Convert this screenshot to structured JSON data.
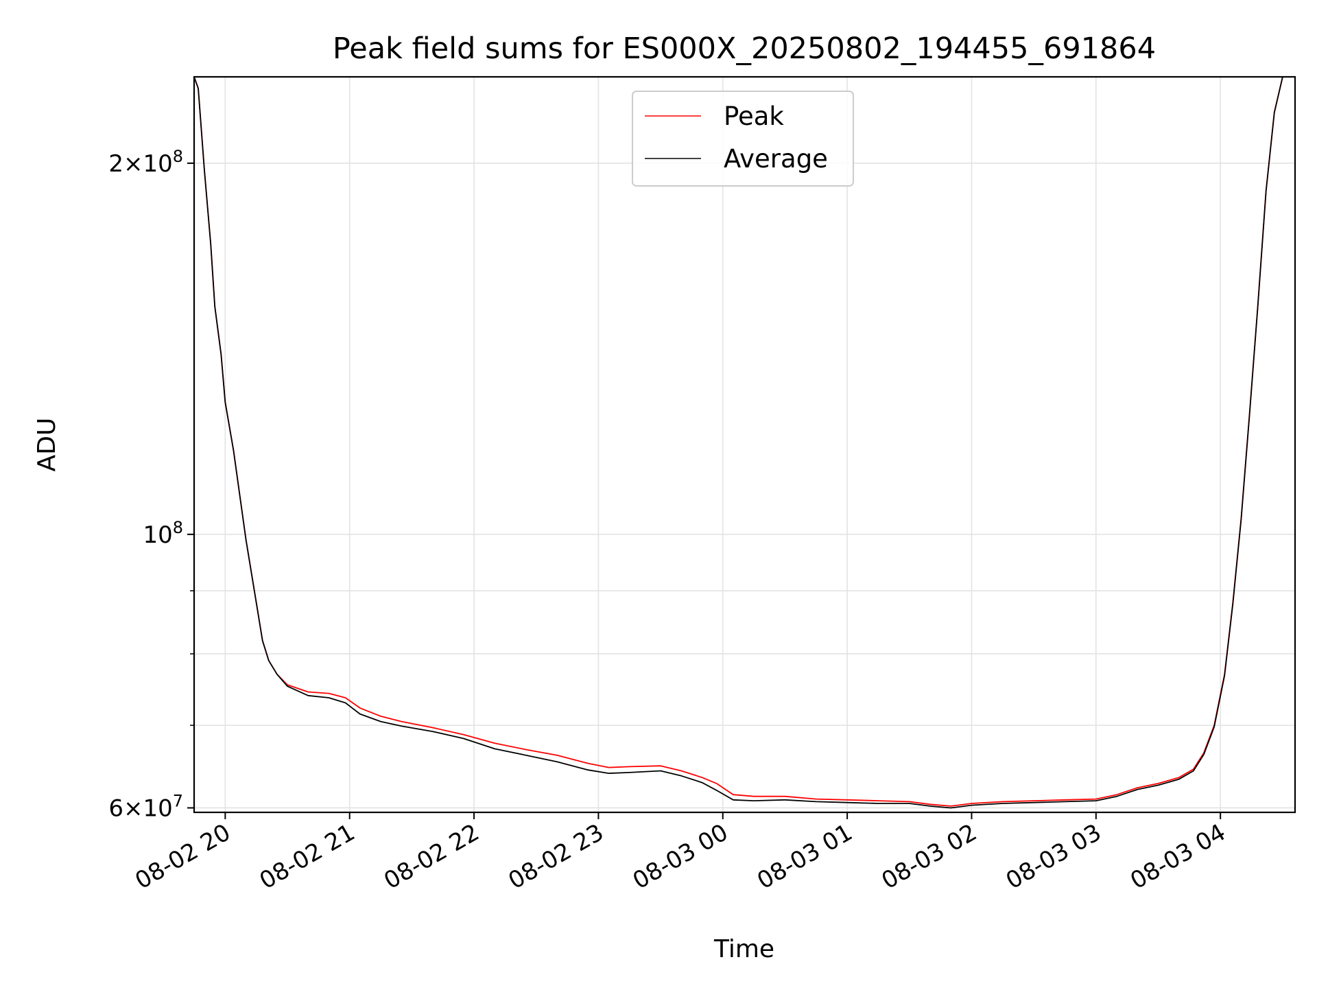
{
  "chart_data": {
    "type": "line",
    "title": "Peak field sums for ES000X_20250802_194455_691864",
    "xlabel": "Time",
    "ylabel": "ADU",
    "y_scale": "log",
    "xlim": [
      "2025-08-02 19:45",
      "2025-08-03 04:36"
    ],
    "ylim": [
      59500000,
      235000000
    ],
    "x_ticks": [
      "08-02 20",
      "08-02 21",
      "08-02 22",
      "08-02 23",
      "08-03 00",
      "08-03 01",
      "08-03 02",
      "08-03 03",
      "08-03 04"
    ],
    "y_ticks": [
      {
        "value": 60000000,
        "base": "6",
        "exp": "7"
      },
      {
        "value": 100000000,
        "base": "",
        "exp": "8"
      },
      {
        "value": 200000000,
        "base": "2",
        "exp": "8"
      }
    ],
    "grid": true,
    "legend_position": "upper center",
    "series": [
      {
        "name": "Peak",
        "color": "#ff0000",
        "points": [
          [
            "2025-08-02 19:45",
            235000000
          ],
          [
            "2025-08-02 19:47",
            230000000
          ],
          [
            "2025-08-02 19:50",
            197000000
          ],
          [
            "2025-08-02 19:53",
            172000000
          ],
          [
            "2025-08-02 19:55",
            153000000
          ],
          [
            "2025-08-02 19:58",
            140000000
          ],
          [
            "2025-08-02 20:00",
            128000000
          ],
          [
            "2025-08-02 20:04",
            117000000
          ],
          [
            "2025-08-02 20:10",
            99000000
          ],
          [
            "2025-08-02 20:15",
            88000000
          ],
          [
            "2025-08-02 20:18",
            82000000
          ],
          [
            "2025-08-02 20:21",
            79000000
          ],
          [
            "2025-08-02 20:25",
            77000000
          ],
          [
            "2025-08-02 20:30",
            75500000
          ],
          [
            "2025-08-02 20:40",
            74500000
          ],
          [
            "2025-08-02 20:50",
            74300000
          ],
          [
            "2025-08-02 20:58",
            73700000
          ],
          [
            "2025-08-02 21:05",
            72300000
          ],
          [
            "2025-08-02 21:15",
            71200000
          ],
          [
            "2025-08-02 21:25",
            70500000
          ],
          [
            "2025-08-02 21:40",
            69700000
          ],
          [
            "2025-08-02 21:55",
            68800000
          ],
          [
            "2025-08-02 22:10",
            67700000
          ],
          [
            "2025-08-02 22:25",
            66900000
          ],
          [
            "2025-08-02 22:40",
            66200000
          ],
          [
            "2025-08-02 22:55",
            65200000
          ],
          [
            "2025-08-02 23:05",
            64700000
          ],
          [
            "2025-08-02 23:15",
            64800000
          ],
          [
            "2025-08-02 23:30",
            64900000
          ],
          [
            "2025-08-02 23:40",
            64300000
          ],
          [
            "2025-08-02 23:50",
            63500000
          ],
          [
            "2025-08-02 23:57",
            62800000
          ],
          [
            "2025-08-03 00:05",
            61500000
          ],
          [
            "2025-08-03 00:15",
            61300000
          ],
          [
            "2025-08-03 00:30",
            61300000
          ],
          [
            "2025-08-03 00:45",
            61000000
          ],
          [
            "2025-08-03 01:00",
            60900000
          ],
          [
            "2025-08-03 01:15",
            60800000
          ],
          [
            "2025-08-03 01:30",
            60700000
          ],
          [
            "2025-08-03 01:40",
            60400000
          ],
          [
            "2025-08-03 01:50",
            60200000
          ],
          [
            "2025-08-03 02:00",
            60500000
          ],
          [
            "2025-08-03 02:15",
            60700000
          ],
          [
            "2025-08-03 02:30",
            60800000
          ],
          [
            "2025-08-03 02:45",
            60900000
          ],
          [
            "2025-08-03 03:00",
            61000000
          ],
          [
            "2025-08-03 03:10",
            61500000
          ],
          [
            "2025-08-03 03:20",
            62300000
          ],
          [
            "2025-08-03 03:30",
            62800000
          ],
          [
            "2025-08-03 03:40",
            63500000
          ],
          [
            "2025-08-03 03:47",
            64500000
          ],
          [
            "2025-08-03 03:52",
            66500000
          ],
          [
            "2025-08-03 03:57",
            70000000
          ],
          [
            "2025-08-03 04:02",
            77000000
          ],
          [
            "2025-08-03 04:06",
            88000000
          ],
          [
            "2025-08-03 04:10",
            103000000
          ],
          [
            "2025-08-03 04:14",
            125000000
          ],
          [
            "2025-08-03 04:18",
            153000000
          ],
          [
            "2025-08-03 04:22",
            190000000
          ],
          [
            "2025-08-03 04:26",
            220000000
          ],
          [
            "2025-08-03 04:30",
            235000000
          ],
          [
            "2025-08-03 04:36",
            235000000
          ]
        ]
      },
      {
        "name": "Average",
        "color": "#000000",
        "points": [
          [
            "2025-08-02 19:45",
            235000000
          ],
          [
            "2025-08-02 19:47",
            230000000
          ],
          [
            "2025-08-02 19:50",
            197000000
          ],
          [
            "2025-08-02 19:53",
            172000000
          ],
          [
            "2025-08-02 19:55",
            153000000
          ],
          [
            "2025-08-02 19:58",
            140000000
          ],
          [
            "2025-08-02 20:00",
            128000000
          ],
          [
            "2025-08-02 20:04",
            117000000
          ],
          [
            "2025-08-02 20:10",
            99000000
          ],
          [
            "2025-08-02 20:15",
            88000000
          ],
          [
            "2025-08-02 20:18",
            82000000
          ],
          [
            "2025-08-02 20:21",
            79000000
          ],
          [
            "2025-08-02 20:25",
            77000000
          ],
          [
            "2025-08-02 20:30",
            75300000
          ],
          [
            "2025-08-02 20:40",
            74000000
          ],
          [
            "2025-08-02 20:50",
            73700000
          ],
          [
            "2025-08-02 20:58",
            73000000
          ],
          [
            "2025-08-02 21:05",
            71500000
          ],
          [
            "2025-08-02 21:15",
            70500000
          ],
          [
            "2025-08-02 21:25",
            69900000
          ],
          [
            "2025-08-02 21:40",
            69200000
          ],
          [
            "2025-08-02 21:55",
            68300000
          ],
          [
            "2025-08-02 22:10",
            67000000
          ],
          [
            "2025-08-02 22:25",
            66200000
          ],
          [
            "2025-08-02 22:40",
            65400000
          ],
          [
            "2025-08-02 22:55",
            64400000
          ],
          [
            "2025-08-02 23:05",
            64000000
          ],
          [
            "2025-08-02 23:15",
            64100000
          ],
          [
            "2025-08-02 23:30",
            64300000
          ],
          [
            "2025-08-02 23:40",
            63700000
          ],
          [
            "2025-08-02 23:50",
            62900000
          ],
          [
            "2025-08-02 23:57",
            62000000
          ],
          [
            "2025-08-03 00:05",
            60900000
          ],
          [
            "2025-08-03 00:15",
            60800000
          ],
          [
            "2025-08-03 00:30",
            60900000
          ],
          [
            "2025-08-03 00:45",
            60700000
          ],
          [
            "2025-08-03 01:00",
            60600000
          ],
          [
            "2025-08-03 01:15",
            60500000
          ],
          [
            "2025-08-03 01:30",
            60500000
          ],
          [
            "2025-08-03 01:40",
            60200000
          ],
          [
            "2025-08-03 01:50",
            60000000
          ],
          [
            "2025-08-03 02:00",
            60300000
          ],
          [
            "2025-08-03 02:15",
            60500000
          ],
          [
            "2025-08-03 02:30",
            60600000
          ],
          [
            "2025-08-03 02:45",
            60700000
          ],
          [
            "2025-08-03 03:00",
            60800000
          ],
          [
            "2025-08-03 03:10",
            61300000
          ],
          [
            "2025-08-03 03:20",
            62100000
          ],
          [
            "2025-08-03 03:30",
            62600000
          ],
          [
            "2025-08-03 03:40",
            63300000
          ],
          [
            "2025-08-03 03:47",
            64300000
          ],
          [
            "2025-08-03 03:52",
            66300000
          ],
          [
            "2025-08-03 03:57",
            69800000
          ],
          [
            "2025-08-03 04:02",
            76800000
          ],
          [
            "2025-08-03 04:06",
            87800000
          ],
          [
            "2025-08-03 04:10",
            102800000
          ],
          [
            "2025-08-03 04:14",
            124800000
          ],
          [
            "2025-08-03 04:18",
            152800000
          ],
          [
            "2025-08-03 04:22",
            189800000
          ],
          [
            "2025-08-03 04:26",
            219800000
          ],
          [
            "2025-08-03 04:30",
            235000000
          ],
          [
            "2025-08-03 04:36",
            235000000
          ]
        ]
      }
    ]
  }
}
